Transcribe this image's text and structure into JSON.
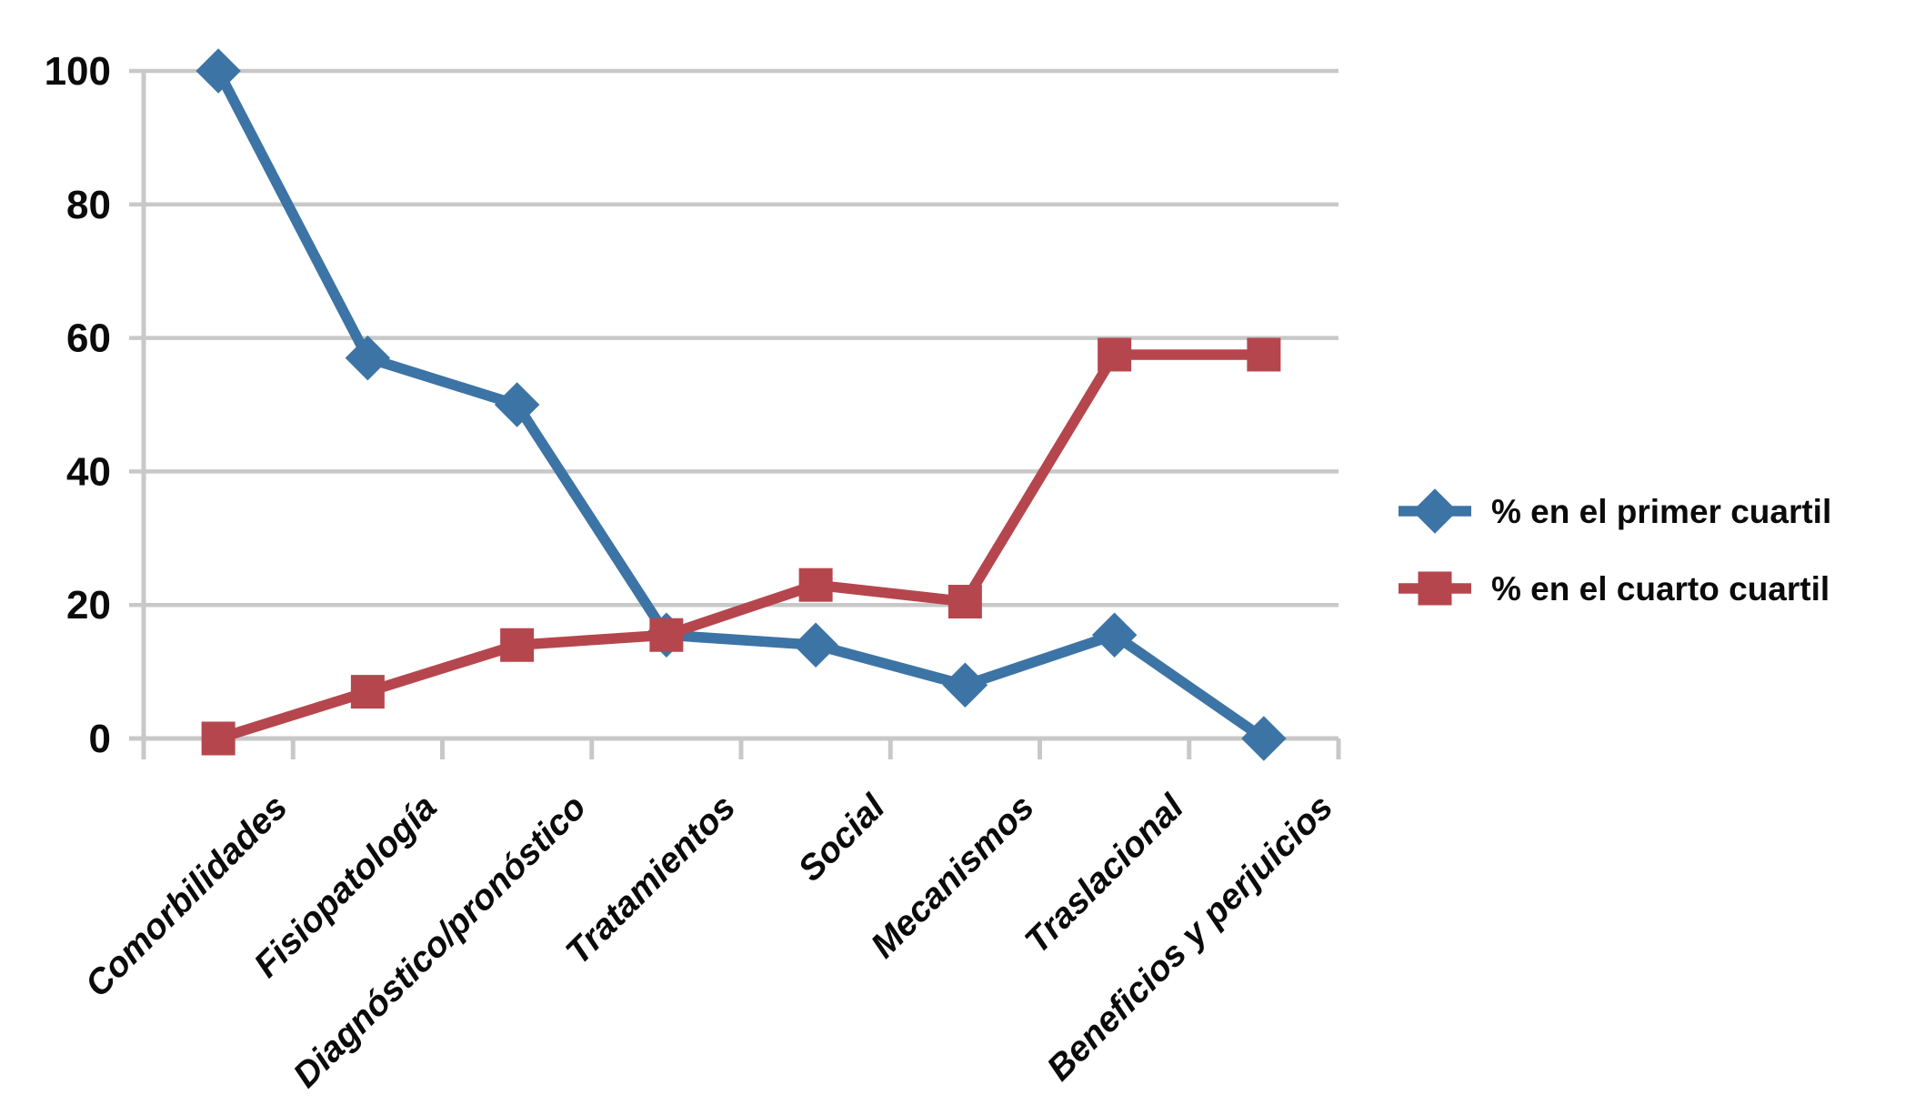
{
  "chart_data": {
    "type": "line",
    "title": "",
    "xlabel": "",
    "ylabel": "",
    "categories": [
      "Comorbilidades",
      "Fisiopatología",
      "Diagnóstico/pronóstico",
      "Tratamientos",
      "Social",
      "Mecanismos",
      "Traslacional",
      "Beneficios y perjuicios"
    ],
    "series": [
      {
        "name": "% en el primer cuartil",
        "marker": "diamond",
        "color": "#3D74A6",
        "values": [
          100,
          57,
          50,
          15.5,
          14,
          8,
          15.5,
          0
        ]
      },
      {
        "name": "% en el cuarto cuartil",
        "marker": "square",
        "color": "#B6464D",
        "values": [
          0,
          7,
          14,
          15.5,
          23,
          20.5,
          57.5,
          57.5
        ]
      }
    ],
    "yticks": [
      0,
      20,
      40,
      60,
      80,
      100
    ],
    "ylim": [
      0,
      100
    ],
    "grid": "horizontal",
    "gridline_color": "#C8C8C8",
    "axis_color": "#C8C8C8",
    "text_color": "#0b0b0b",
    "background_color": "#FFFFFF",
    "legend_position": "right",
    "x_tick_label_rotation_deg": -45
  }
}
